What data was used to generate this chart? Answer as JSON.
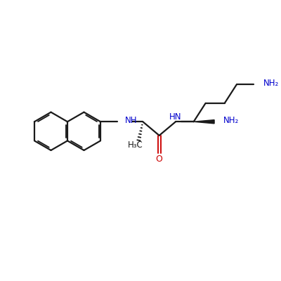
{
  "background_color": "#ffffff",
  "bond_color": "#1a1a1a",
  "heteroatom_color_N": "#0000cc",
  "heteroatom_color_O": "#cc0000",
  "line_width": 1.6,
  "figsize": [
    4.0,
    4.0
  ],
  "dpi": 100,
  "xlim": [
    0,
    10
  ],
  "ylim": [
    0,
    10
  ]
}
